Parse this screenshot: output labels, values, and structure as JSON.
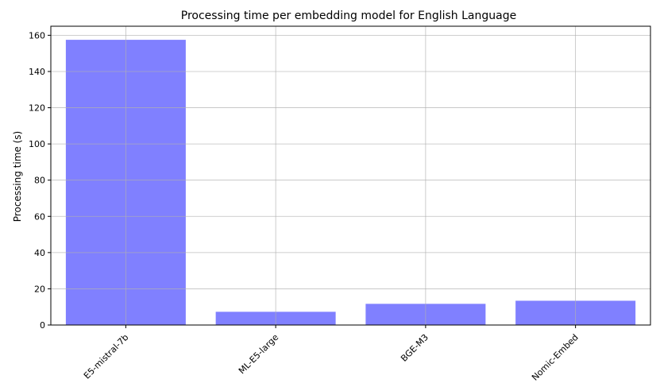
{
  "chart_data": {
    "type": "bar",
    "title": "Processing time per embedding model for English Language",
    "xlabel": "",
    "ylabel": "Processing time (s)",
    "categories": [
      "E5-mistral-7b",
      "ML-E5-large",
      "BGE-M3",
      "Nomic-Embed"
    ],
    "values": [
      157.5,
      7.3,
      11.7,
      13.4
    ],
    "ylim": [
      0,
      165
    ],
    "yticks": [
      0,
      20,
      40,
      60,
      80,
      100,
      120,
      140,
      160
    ],
    "grid": true,
    "bar_color": "#8080ff"
  }
}
